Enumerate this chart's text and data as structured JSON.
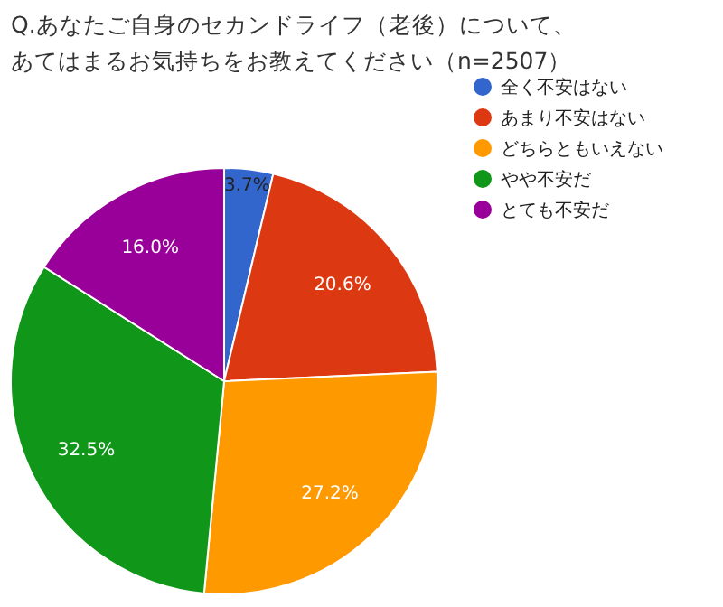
{
  "chart_data": {
    "type": "pie",
    "title": "Q.あなたご自身のセカンドライフ（老後）について、",
    "subtitle": "あてはまるお気持ちをお教えてください（n=2507）",
    "categories": [
      "全く不安はない",
      "あまり不安はない",
      "どちらともいえない",
      "やや不安だ",
      "とても不安だ"
    ],
    "values": [
      3.7,
      20.6,
      27.2,
      32.5,
      16.0
    ],
    "colors": [
      "#3366cc",
      "#dc3912",
      "#ff9900",
      "#109618",
      "#990099"
    ],
    "value_labels": [
      "3.7%",
      "20.6%",
      "27.2%",
      "32.5%",
      "16.0%"
    ],
    "legend": "top right"
  }
}
